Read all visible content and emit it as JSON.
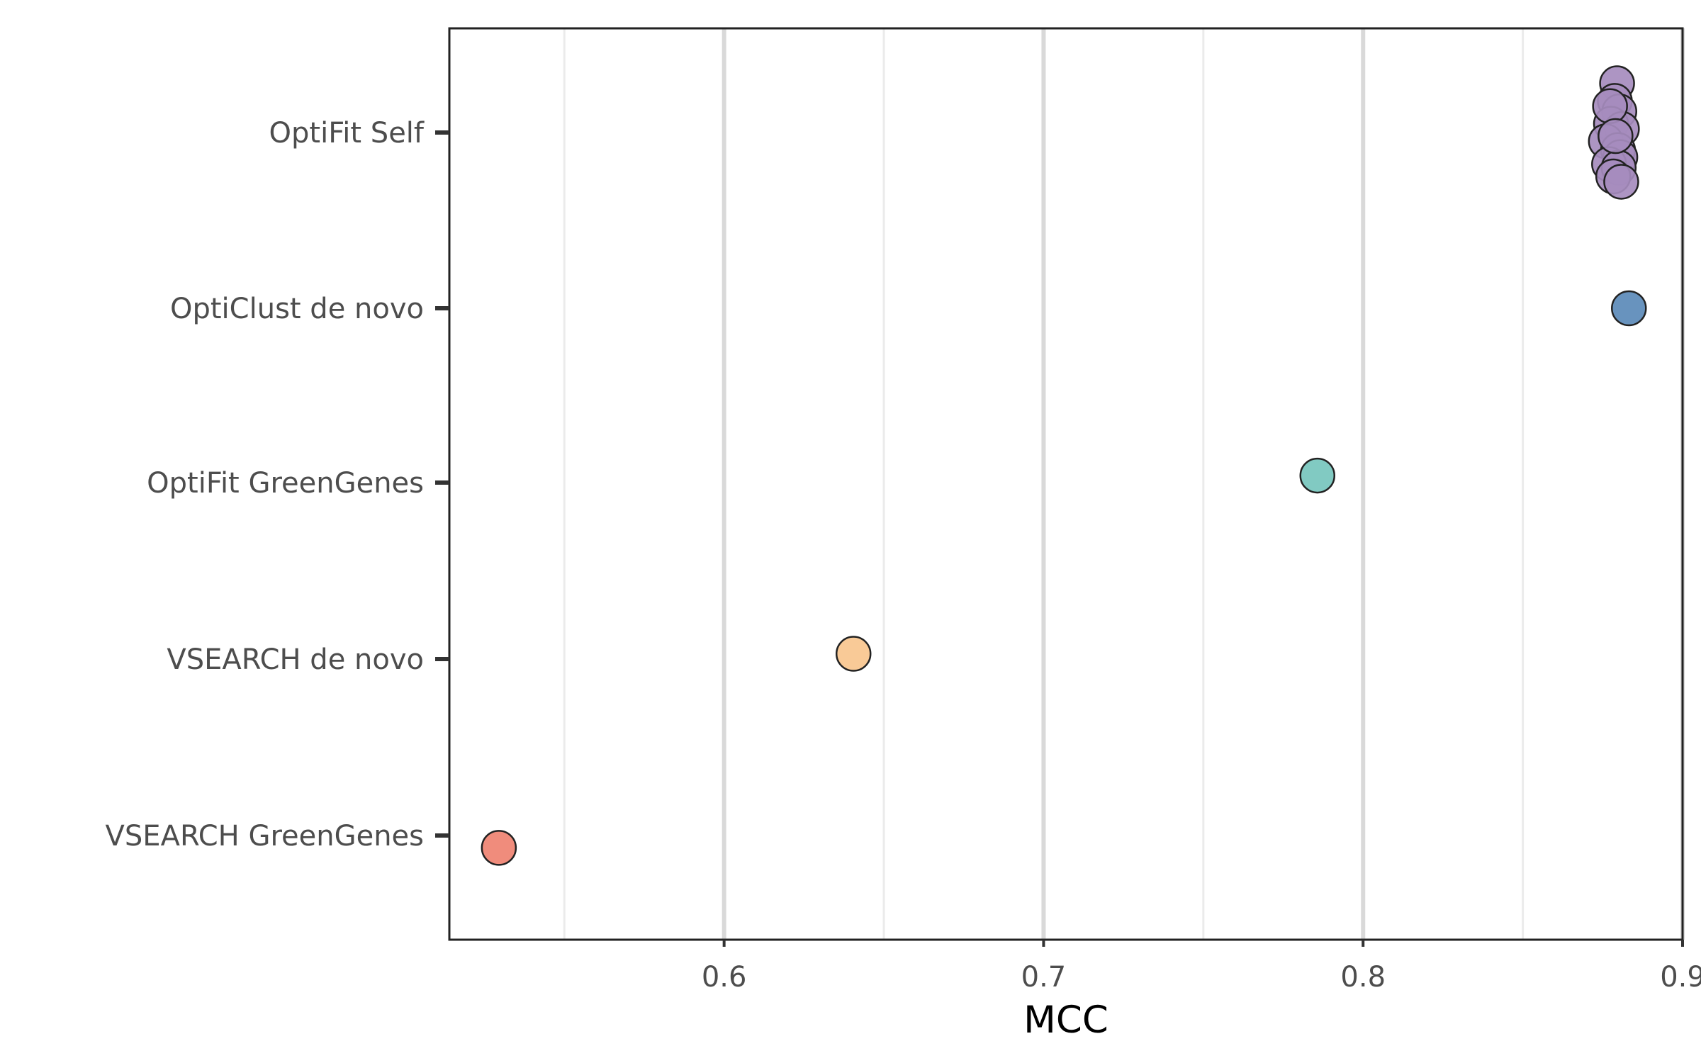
{
  "chart_data": {
    "type": "scatter",
    "xlabel": "MCC",
    "ylabel": "",
    "xlim": [
      0.514,
      0.9
    ],
    "x_ticks": [
      0.6,
      0.7,
      0.8,
      0.9
    ],
    "x_tick_labels": [
      "0.6",
      "0.7",
      "0.8",
      "0.9"
    ],
    "x_minor_ticks": [
      0.55,
      0.65,
      0.75,
      0.85
    ],
    "grid": "vertical",
    "legend": "none",
    "categories": [
      "OptiFit Self",
      "OptiClust de novo",
      "OptiFit GreenGenes",
      "VSEARCH de novo",
      "VSEARCH GreenGenes"
    ],
    "series": [
      {
        "category": "OptiFit Self",
        "color": "#a68cbe",
        "points": [
          {
            "x": 0.8795,
            "y": 0.28
          },
          {
            "x": 0.8788,
            "y": 0.18
          },
          {
            "x": 0.8802,
            "y": 0.12
          },
          {
            "x": 0.8776,
            "y": 0.05
          },
          {
            "x": 0.881,
            "y": 0.02
          },
          {
            "x": 0.876,
            "y": -0.05
          },
          {
            "x": 0.8798,
            "y": -0.1
          },
          {
            "x": 0.8805,
            "y": -0.14
          },
          {
            "x": 0.877,
            "y": -0.18
          },
          {
            "x": 0.88,
            "y": -0.2
          },
          {
            "x": 0.8783,
            "y": -0.25
          },
          {
            "x": 0.8808,
            "y": -0.28
          },
          {
            "x": 0.8773,
            "y": 0.15
          },
          {
            "x": 0.879,
            "y": -0.02
          }
        ]
      },
      {
        "category": "OptiClust de novo",
        "color": "#5b8ab9",
        "points": [
          {
            "x": 0.8832,
            "y": 0.0
          }
        ]
      },
      {
        "category": "OptiFit GreenGenes",
        "color": "#76c5bd",
        "points": [
          {
            "x": 0.7857,
            "y": 0.04
          }
        ]
      },
      {
        "category": "VSEARCH de novo",
        "color": "#f8c58e",
        "points": [
          {
            "x": 0.6405,
            "y": 0.03
          }
        ]
      },
      {
        "category": "VSEARCH GreenGenes",
        "color": "#ef8271",
        "points": [
          {
            "x": 0.5295,
            "y": -0.07
          }
        ]
      }
    ]
  }
}
